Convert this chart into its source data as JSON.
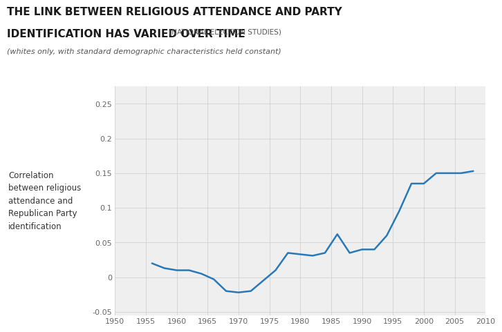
{
  "title_main": "THE LINK BETWEEN RELIGIOUS ATTENDANCE AND PARTY",
  "title_main2": "IDENTIFICATION HAS VARIED OVER TIME",
  "title_source": " (NATIONAL ELECTION STUDIES)",
  "title_sub": "(whites only, with standard demographic characteristics held constant)",
  "ylabel_lines": [
    "Correlation",
    "between religious",
    "attendance and",
    "Republican Party",
    "identification"
  ],
  "x": [
    1956,
    1958,
    1960,
    1962,
    1964,
    1966,
    1968,
    1970,
    1972,
    1974,
    1976,
    1978,
    1980,
    1982,
    1984,
    1986,
    1988,
    1990,
    1992,
    1994,
    1996,
    1998,
    2000,
    2002,
    2004,
    2006,
    2008
  ],
  "y": [
    0.02,
    0.013,
    0.01,
    0.01,
    0.005,
    -0.003,
    -0.02,
    -0.022,
    -0.02,
    -0.005,
    0.01,
    0.035,
    0.033,
    0.031,
    0.035,
    0.062,
    0.035,
    0.04,
    0.04,
    0.06,
    0.095,
    0.135,
    0.135,
    0.15,
    0.15,
    0.15,
    0.153
  ],
  "line_color": "#2878b5",
  "line_width": 1.8,
  "xlim": [
    1950,
    2010
  ],
  "ylim": [
    -0.055,
    0.275
  ],
  "xticks": [
    1950,
    1955,
    1960,
    1965,
    1970,
    1975,
    1980,
    1985,
    1990,
    1995,
    2000,
    2005,
    2010
  ],
  "yticks": [
    -0.05,
    0.0,
    0.05,
    0.1,
    0.15,
    0.2,
    0.25
  ],
  "ytick_labels": [
    "-0.05",
    "0",
    "0.05",
    "0.1",
    "0.15",
    "0.2",
    "0.25"
  ],
  "xtick_labels": [
    "1950",
    "1955",
    "1960",
    "1965",
    "1970",
    "1975",
    "1980",
    "1985",
    "1990",
    "1995",
    "2000",
    "2005",
    "2010"
  ],
  "background_color": "#efefef",
  "outer_background": "#ffffff",
  "grid_color": "#d0d0d0",
  "title_fontsize": 11,
  "source_fontsize": 7.5,
  "sub_fontsize": 8.0,
  "tick_fontsize": 8.0,
  "ylabel_fontsize": 8.5
}
